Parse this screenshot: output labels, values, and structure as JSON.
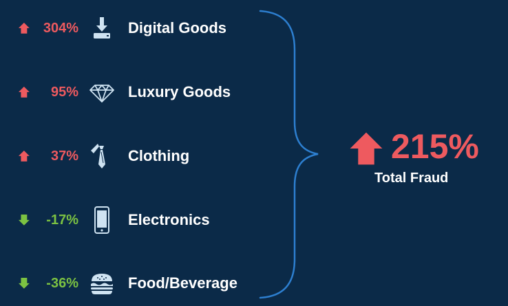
{
  "categories": [
    {
      "change": "304%",
      "direction": "up",
      "icon": "download-tray-icon",
      "label": "Digital Goods"
    },
    {
      "change": "95%",
      "direction": "up",
      "icon": "diamond-icon",
      "label": "Luxury Goods"
    },
    {
      "change": "37%",
      "direction": "up",
      "icon": "necktie-icon",
      "label": "Clothing"
    },
    {
      "change": "-17%",
      "direction": "down",
      "icon": "smartphone-icon",
      "label": "Electronics"
    },
    {
      "change": "-36%",
      "direction": "down",
      "icon": "burger-icon",
      "label": "Food/Beverage"
    }
  ],
  "total": {
    "change": "215%",
    "direction": "up",
    "label": "Total Fraud"
  },
  "colors": {
    "background": "#0b2a48",
    "increase": "#ee5a5f",
    "decrease": "#7cc242",
    "brace": "#2d7fd0",
    "icon": "#cfe3f2"
  }
}
